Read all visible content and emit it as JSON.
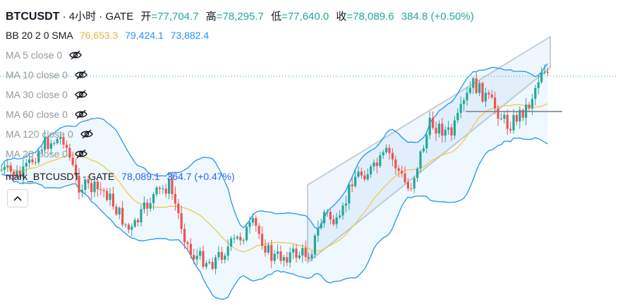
{
  "legend": {
    "symbol": "BTCUSDT",
    "separator": "·",
    "interval": "4小时",
    "exchange": "GATE",
    "open_label": "开",
    "open": "=77,704.7",
    "high_label": "高",
    "high": "=78,295.7",
    "low_label": "低",
    "low": "=77,640.0",
    "close_label": "收",
    "close": "=78,089.6",
    "change": "384.8 (+0.50%)"
  },
  "bb": {
    "label": "BB 20 2 0 SMA",
    "basis": "76,653.3",
    "upper": "79,424.1",
    "lower": "73,882.4",
    "basis_color": "#f0c94a",
    "band_color": "#2196f3"
  },
  "ma_rows": [
    {
      "label": "MA 5 close 0",
      "icon": "eye-crossed-icon"
    },
    {
      "label": "MA 10 close 0",
      "icon": "eye-crossed-icon"
    },
    {
      "label": "MA 30 close 0",
      "icon": "eye-crossed-icon"
    },
    {
      "label": "MA 60 close 0",
      "icon": "eye-crossed-icon"
    },
    {
      "label": "MA 120 close 0",
      "icon": "eye-crossed-icon"
    },
    {
      "label": "MA 20 close 0",
      "icon": "eye-crossed-icon"
    }
  ],
  "mark": {
    "label": "mark_BTCUSDT · GATE",
    "value": "78,089.1",
    "change": "364.7 (+0.47%)"
  },
  "collapse_icon": "chevron-up-icon",
  "colors": {
    "up": "#26a69a",
    "down": "#ef5350",
    "text": "#131722",
    "muted": "#9598a1",
    "channel": "#c9cdd4"
  }
}
